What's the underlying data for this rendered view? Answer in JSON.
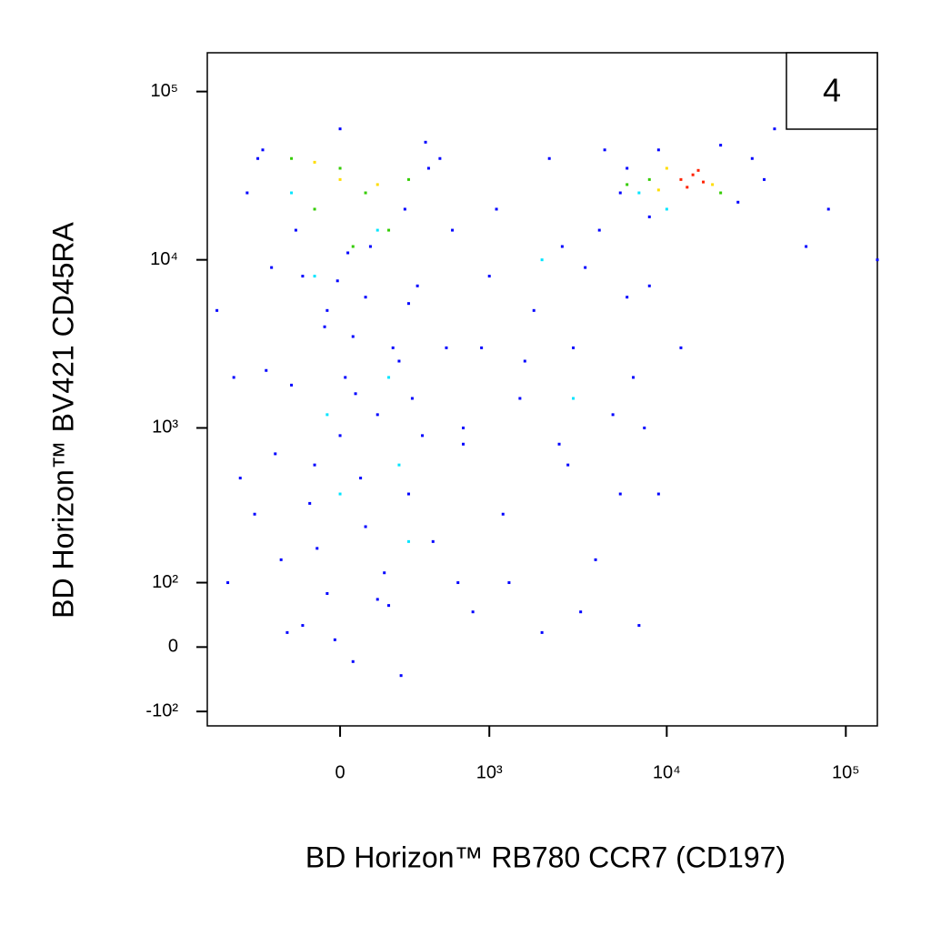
{
  "chart_data": {
    "type": "scatter",
    "xlabel": "BD Horizon™ RB780  CCR7 (CD197)",
    "ylabel": "BD Horizon™ BV421 CD45RA",
    "annotation": "4",
    "xscale": "biexponential",
    "yscale": "biexponential",
    "xlim": [
      -800,
      150000
    ],
    "ylim": [
      -130,
      170000
    ],
    "xticks": [
      {
        "value": 0,
        "label": "0"
      },
      {
        "value": 1000,
        "label": "10³"
      },
      {
        "value": 10000,
        "label": "10⁴"
      },
      {
        "value": 100000,
        "label": "10⁵"
      }
    ],
    "yticks": [
      {
        "value": -100,
        "label": "-10²"
      },
      {
        "value": 0,
        "label": "0"
      },
      {
        "value": 100,
        "label": "10²"
      },
      {
        "value": 1000,
        "label": "10³"
      },
      {
        "value": 10000,
        "label": "10⁴"
      },
      {
        "value": 100000,
        "label": "10⁵"
      }
    ],
    "series": [
      {
        "color": "#0000ff",
        "x": [
          -150,
          50,
          200,
          -250,
          100,
          300,
          -100,
          0,
          150,
          -200,
          250,
          50,
          -50,
          350,
          -300,
          120,
          -180,
          280,
          -350,
          400,
          0,
          -50,
          180,
          -120,
          80,
          -280,
          320,
          20,
          -60,
          220,
          -400,
          450,
          -20,
          260,
          -220,
          100,
          -150,
          30,
          380,
          -330,
          150,
          -90,
          60,
          -10,
          300,
          -600,
          -550,
          -700,
          -500,
          -450,
          500,
          600,
          550,
          700,
          650,
          -380,
          420,
          800,
          1200,
          1500,
          2000,
          2500,
          3000,
          4000,
          5000,
          6000,
          7000,
          9000,
          1000,
          1800,
          2200,
          4500,
          1600,
          2800,
          3500,
          900,
          1300,
          7500,
          8000,
          12000,
          5500,
          3300,
          2600,
          1100,
          700,
          4200,
          6500,
          5500,
          6000,
          8000,
          25000,
          30000,
          35000,
          9000,
          20000,
          80000,
          150000,
          60000,
          40000
        ],
        "values": [
          30,
          -20,
          60,
          150,
          250,
          400,
          600,
          900,
          1200,
          1800,
          2500,
          3500,
          5000,
          7000,
          9000,
          12000,
          15000,
          20000,
          45000,
          50000,
          60000,
          80,
          120,
          350,
          500,
          700,
          1500,
          2000,
          4000,
          3000,
          300,
          200,
          10,
          -40,
          20,
          6000,
          8000,
          11000,
          900,
          2200,
          70,
          180,
          1600,
          7500,
          5500,
          100,
          2000,
          5000,
          500,
          25000,
          40000,
          15000,
          3000,
          800,
          100,
          40000,
          35000,
          50,
          300,
          1500,
          20,
          800,
          3000,
          150,
          1200,
          6000,
          30,
          400,
          8000,
          5000,
          40000,
          45000,
          2500,
          600,
          9000,
          3000,
          100,
          1000,
          7000,
          3000,
          400,
          50,
          12000,
          20000,
          1000,
          15000,
          2000,
          25000,
          35000,
          18000,
          22000,
          40000,
          30000,
          45000,
          48000,
          20000,
          10000,
          12000,
          60000
        ]
      },
      {
        "color": "#00e5ff",
        "x": [
          0,
          200,
          -100,
          300,
          150,
          -200,
          250,
          -50,
          2000,
          7000,
          10000,
          3000
        ],
        "values": [
          400,
          2000,
          8000,
          200,
          15000,
          25000,
          600,
          1200,
          10000,
          25000,
          20000,
          1500
        ]
      },
      {
        "color": "#33cc00",
        "x": [
          -100,
          100,
          0,
          200,
          -200,
          300,
          50,
          8000,
          20000,
          6000
        ],
        "values": [
          20000,
          25000,
          35000,
          15000,
          40000,
          30000,
          12000,
          30000,
          25000,
          28000
        ]
      },
      {
        "color": "#ffdd00",
        "x": [
          0,
          150,
          -100,
          10000,
          18000,
          9000
        ],
        "values": [
          30000,
          28000,
          38000,
          35000,
          28000,
          26000
        ]
      },
      {
        "color": "#ff2200",
        "x": [
          12000,
          14000,
          16000,
          13000,
          15000
        ],
        "values": [
          30000,
          32000,
          29000,
          27000,
          34000
        ]
      }
    ]
  }
}
